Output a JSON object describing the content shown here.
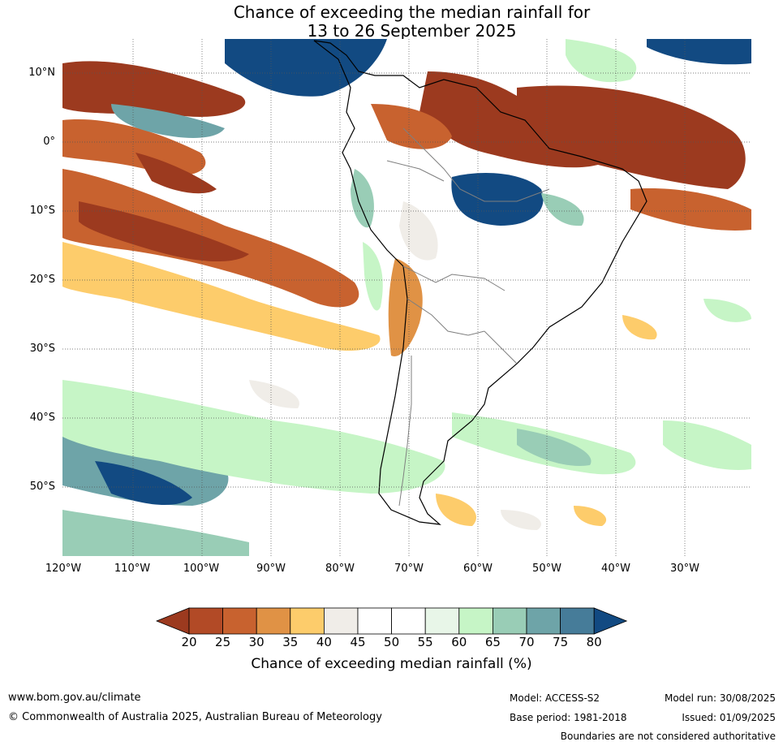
{
  "title_line1": "Chance of exceeding the median rainfall for",
  "title_line2": "13 to 26 September 2025",
  "lat_labels": [
    "10°N",
    "0°",
    "10°S",
    "20°S",
    "30°S",
    "40°S",
    "50°S"
  ],
  "lon_labels": [
    "120°W",
    "110°W",
    "100°W",
    "90°W",
    "80°W",
    "70°W",
    "60°W",
    "50°W",
    "40°W",
    "30°W"
  ],
  "colorbar": {
    "ticks": [
      "20",
      "25",
      "30",
      "35",
      "40",
      "45",
      "50",
      "55",
      "60",
      "65",
      "70",
      "75",
      "80"
    ],
    "colors": [
      "#9c3a1f",
      "#b24a26",
      "#c8622f",
      "#e09245",
      "#fdcc6b",
      "#f0ede8",
      "#ffffff",
      "#ffffff",
      "#e8f6e8",
      "#c6f5c6",
      "#99cdb6",
      "#6ea4a8",
      "#467c99",
      "#124a82"
    ],
    "label": "Chance of exceeding median rainfall (%)"
  },
  "footer": {
    "url": "www.bom.gov.au/climate",
    "copyright": "© Commonwealth of Australia 2025, Australian Bureau of Meteorology",
    "model": "Model: ACCESS-S2",
    "base_period": "Base period: 1981-2018",
    "model_run": "Model run: 30/08/2025",
    "issued": "Issued: 01/09/2025",
    "disclaimer": "Boundaries are not considered authoritative"
  }
}
